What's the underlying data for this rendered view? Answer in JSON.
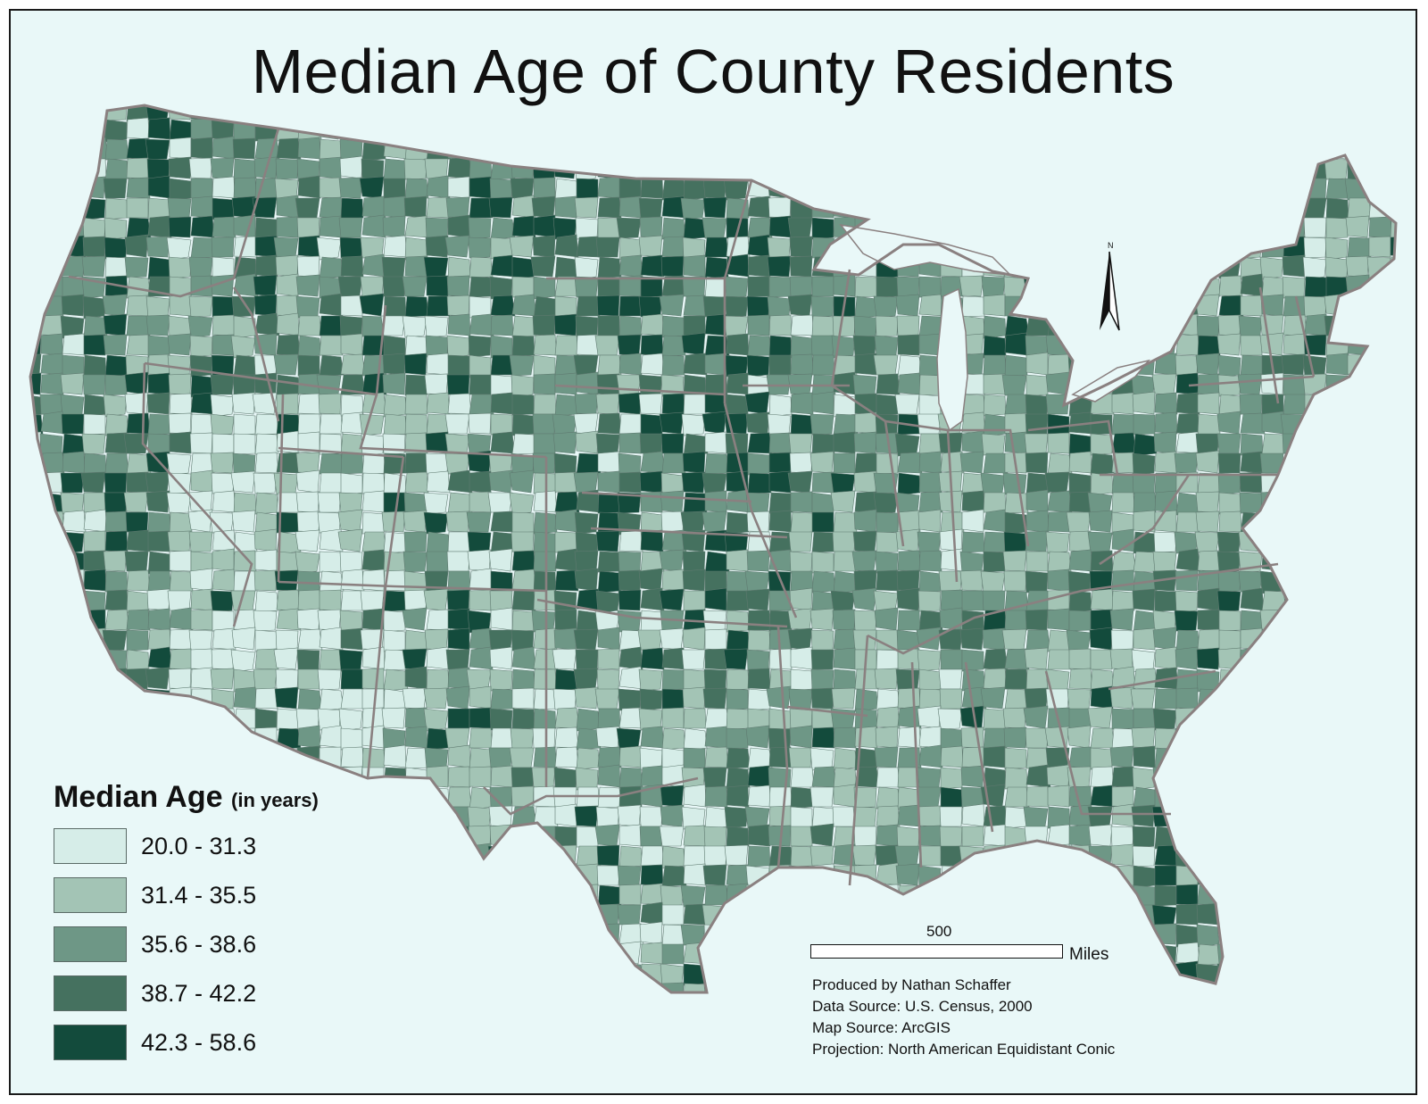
{
  "title": "Median Age of County Residents",
  "north_arrow": {
    "label": "N"
  },
  "legend": {
    "title": "Median Age",
    "unit": "(in years)",
    "classes": [
      {
        "label": "20.0 - 31.3",
        "color": "#d6ede8"
      },
      {
        "label": "31.4 - 35.5",
        "color": "#a3c4b5"
      },
      {
        "label": "35.6 - 38.6",
        "color": "#6e9786"
      },
      {
        "label": "38.7 - 42.2",
        "color": "#45715f"
      },
      {
        "label": "42.3 - 58.6",
        "color": "#134b3c"
      }
    ]
  },
  "scale_bar": {
    "value": "500",
    "unit": "Miles"
  },
  "credits": {
    "produced_by": "Produced by Nathan Schaffer",
    "data_source": "Data Source: U.S. Census, 2000",
    "map_source": "Map Source: ArcGIS",
    "projection": "Projection: North American Equidistant Conic"
  },
  "colors": {
    "background": "#e9f8f8",
    "state_border": "#8a8080",
    "county_border": "#5f7a70"
  }
}
